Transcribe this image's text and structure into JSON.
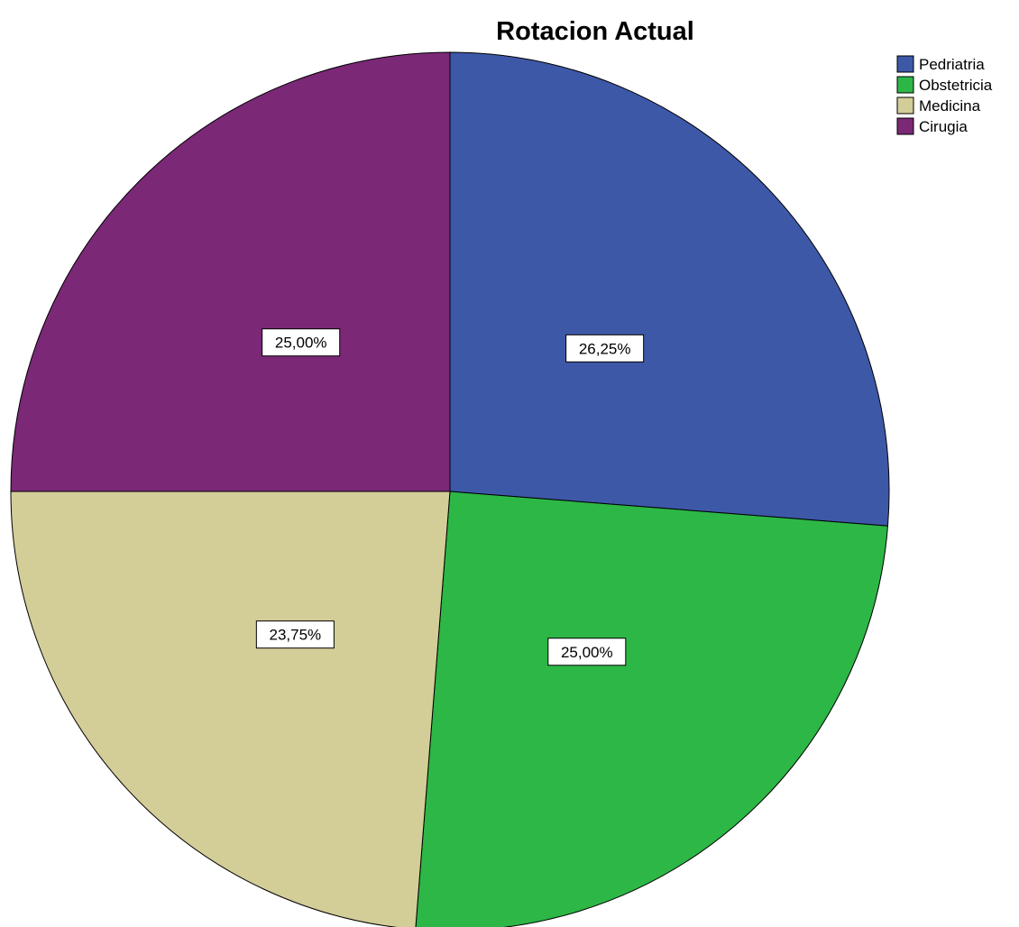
{
  "chart_data": {
    "type": "pie",
    "title": "Rotacion Actual",
    "categories": [
      "Pedriatria",
      "Obstetricia",
      "Medicina",
      "Cirugia"
    ],
    "values": [
      26.25,
      25.0,
      23.75,
      25.0
    ],
    "labels": [
      "26,25%",
      "25,00%",
      "23,75%",
      "25,00%"
    ],
    "colors": [
      "#3e58a8",
      "#2db746",
      "#d3cd98",
      "#7b2877"
    ],
    "start_angle_deg": 0,
    "direction": "clockwise",
    "legend": {
      "position": "top-right",
      "entries": [
        "Pedriatria",
        "Obstetricia",
        "Medicina",
        "Cirugia"
      ]
    }
  }
}
